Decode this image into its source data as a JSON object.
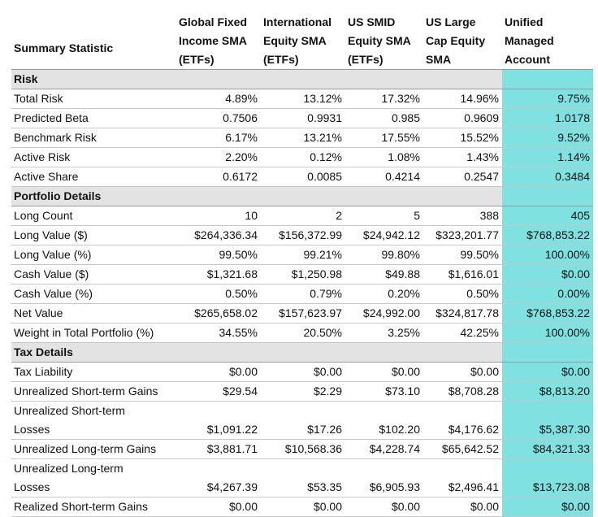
{
  "headers": [
    "Summary Statistic",
    [
      "Global Fixed",
      "Income SMA",
      "(ETFs)"
    ],
    [
      "International",
      "Equity SMA",
      "(ETFs)"
    ],
    [
      "US SMID",
      "Equity SMA",
      "(ETFs)"
    ],
    [
      "US Large",
      "Cap Equity",
      "SMA"
    ],
    [
      "Unified",
      "Managed",
      "Account"
    ]
  ],
  "highlight_color": "#7fe2e0",
  "sections": [
    {
      "title": "Risk",
      "rows": [
        {
          "label": "Total Risk",
          "values": [
            "4.89%",
            "13.12%",
            "17.32%",
            "14.96%",
            "9.75%"
          ]
        },
        {
          "label": "Predicted Beta",
          "values": [
            "0.7506",
            "0.9931",
            "0.985",
            "0.9609",
            "1.0178"
          ]
        },
        {
          "label": "Benchmark Risk",
          "values": [
            "6.17%",
            "13.21%",
            "17.55%",
            "15.52%",
            "9.52%"
          ]
        },
        {
          "label": "Active Risk",
          "values": [
            "2.20%",
            "0.12%",
            "1.08%",
            "1.43%",
            "1.14%"
          ]
        },
        {
          "label": "Active Share",
          "values": [
            "0.6172",
            "0.0085",
            "0.4214",
            "0.2547",
            "0.3484"
          ]
        }
      ]
    },
    {
      "title": "Portfolio Details",
      "rows": [
        {
          "label": "Long Count",
          "values": [
            "10",
            "2",
            "5",
            "388",
            "405"
          ]
        },
        {
          "label": "Long Value ($)",
          "values": [
            "$264,336.34",
            "$156,372.99",
            "$24,942.12",
            "$323,201.77",
            "$768,853.22"
          ]
        },
        {
          "label": "Long Value (%)",
          "values": [
            "99.50%",
            "99.21%",
            "99.80%",
            "99.50%",
            "100.00%"
          ]
        },
        {
          "label": "Cash Value ($)",
          "values": [
            "$1,321.68",
            "$1,250.98",
            "$49.88",
            "$1,616.01",
            "$0.00"
          ]
        },
        {
          "label": "Cash Value (%)",
          "values": [
            "0.50%",
            "0.79%",
            "0.20%",
            "0.50%",
            "0.00%"
          ]
        },
        {
          "label": "Net Value",
          "values": [
            "$265,658.02",
            "$157,623.97",
            "$24,992.00",
            "$324,817.78",
            "$768,853.22"
          ]
        },
        {
          "label": "Weight in Total Portfolio (%)",
          "values": [
            "34.55%",
            "20.50%",
            "3.25%",
            "42.25%",
            "100.00%"
          ]
        }
      ]
    },
    {
      "title": "Tax Details",
      "rows": [
        {
          "label": "Tax Liability",
          "values": [
            "$0.00",
            "$0.00",
            "$0.00",
            "$0.00",
            "$0.00"
          ]
        },
        {
          "label": "Unrealized Short-term Gains",
          "values": [
            "$29.54",
            "$2.29",
            "$73.10",
            "$8,708.28",
            "$8,813.20"
          ]
        },
        {
          "label": [
            "Unrealized Short-term",
            "Losses"
          ],
          "values": [
            "$1,091.22",
            "$17.26",
            "$102.20",
            "$4,176.62",
            "$5,387.30"
          ]
        },
        {
          "label": "Unrealized Long-term Gains",
          "values": [
            "$3,881.71",
            "$10,568.36",
            "$4,228.74",
            "$65,642.52",
            "$84,321.33"
          ]
        },
        {
          "label": [
            "Unrealized Long-term",
            "Losses"
          ],
          "values": [
            "$4,267.39",
            "$53.35",
            "$6,905.93",
            "$2,496.41",
            "$13,723.08"
          ]
        },
        {
          "label": "Realized Short-term Gains",
          "values": [
            "$0.00",
            "$0.00",
            "$0.00",
            "$0.00",
            "$0.00"
          ]
        }
      ]
    }
  ]
}
